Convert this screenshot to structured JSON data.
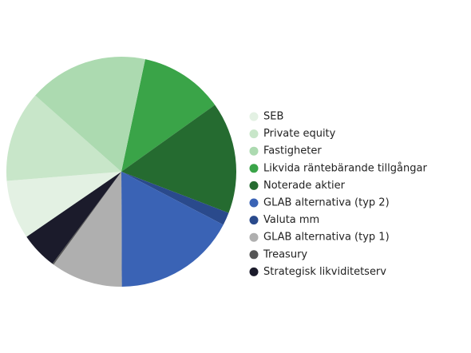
{
  "chart_data": {
    "type": "pie",
    "categories": [
      "SEB",
      "Private equity",
      "Fastigheter",
      "Likvida räntebärande tillgångar",
      "Noterade aktier",
      "GLAB alternativa (typ 2)",
      "Valuta mm",
      "GLAB alternativa (typ 1)",
      "Treasury",
      "Strategisk likviditetserv"
    ],
    "values": [
      8.3,
      12.8,
      16.8,
      11.8,
      15.7,
      17.3,
      1.8,
      10.1,
      0.2,
      5.2
    ],
    "colors": [
      "#e3f1e3",
      "#c8e6c9",
      "#acdab0",
      "#3aa448",
      "#256b30",
      "#3a63b5",
      "#2a4a8c",
      "#afafaf",
      "#555555",
      "#1b1b2b"
    ],
    "legend": "right"
  }
}
